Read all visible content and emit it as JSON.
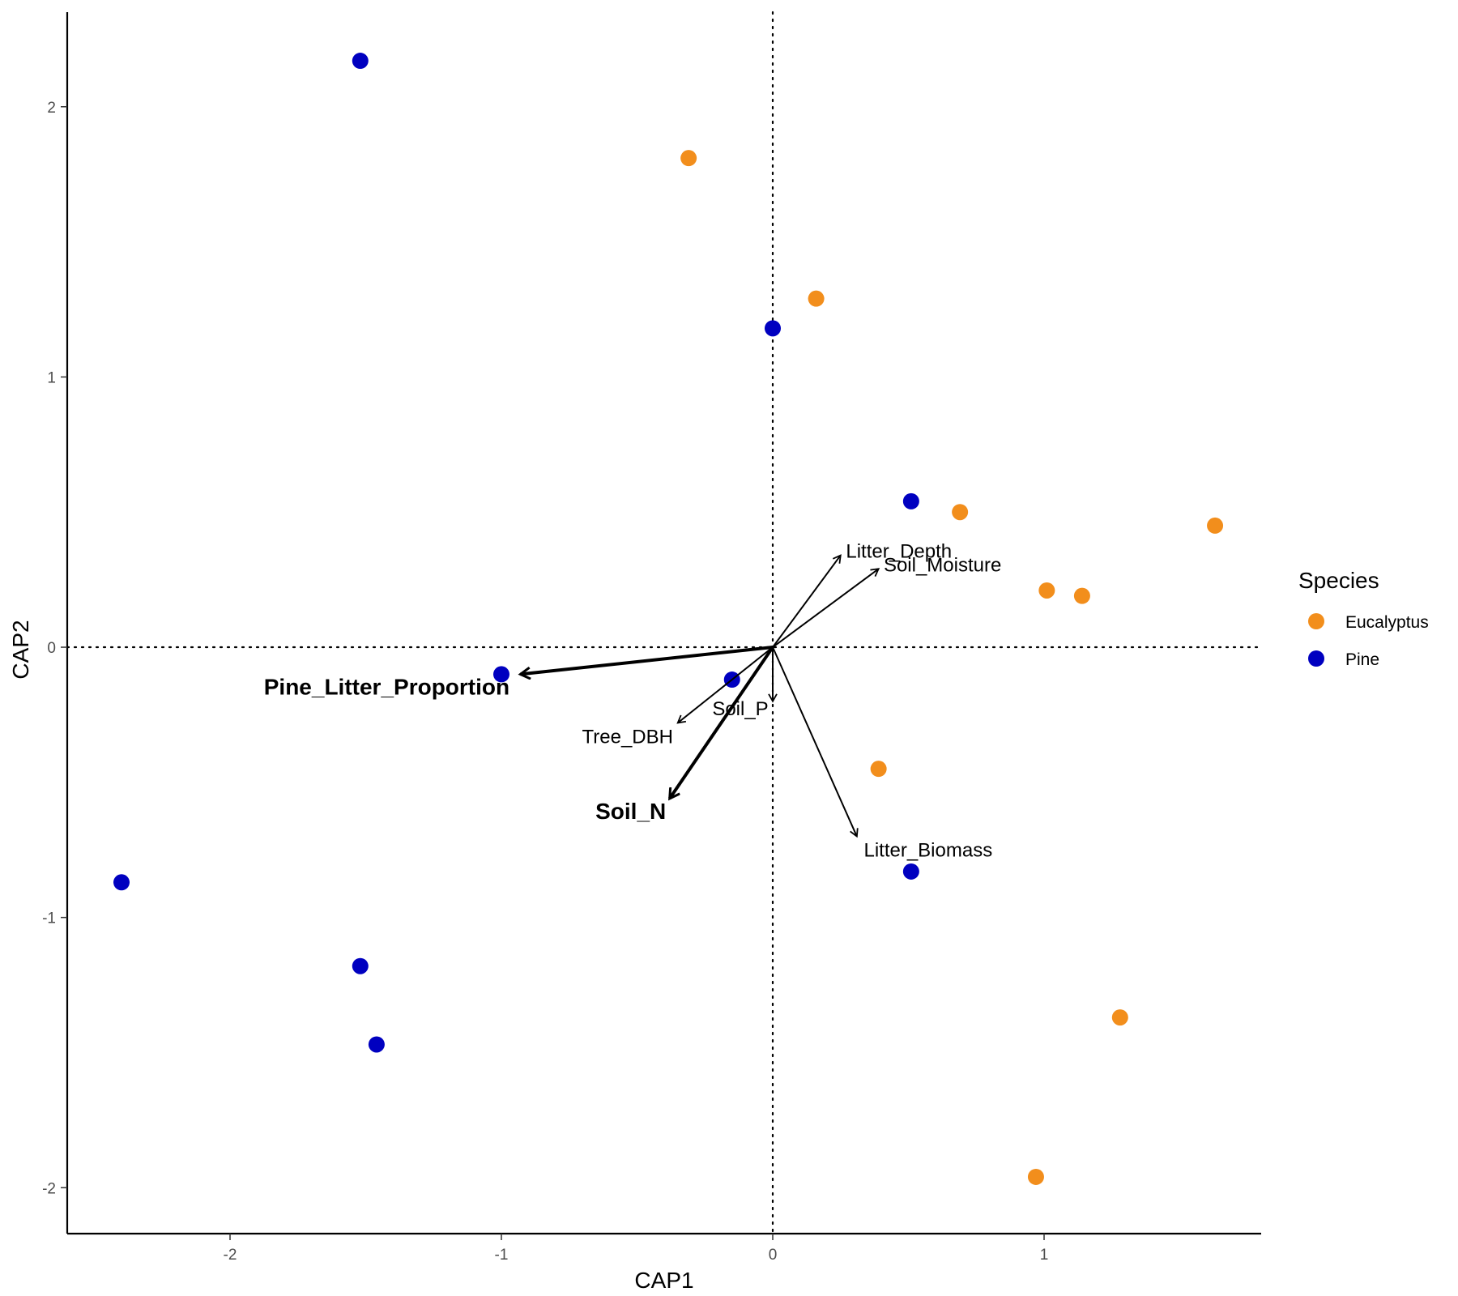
{
  "chart_data": {
    "type": "scatter",
    "xlabel": "CAP1",
    "ylabel": "CAP2",
    "xlim": [
      -2.6,
      1.8
    ],
    "ylim": [
      -2.17,
      2.35
    ],
    "x_ticks": [
      -2,
      -1,
      0,
      1
    ],
    "y_ticks": [
      -2,
      -1,
      0,
      1,
      2
    ],
    "reference_lines": {
      "x": 0,
      "y": 0,
      "style": "dotted"
    },
    "legend": {
      "title": "Species",
      "placement": "right",
      "items": [
        {
          "label": "Eucalyptus",
          "color": "#F28E1C"
        },
        {
          "label": "Pine",
          "color": "#0000C0"
        }
      ]
    },
    "series": [
      {
        "name": "Eucalyptus",
        "color": "#F28E1C",
        "points": [
          {
            "x": -0.31,
            "y": 1.81
          },
          {
            "x": 0.16,
            "y": 1.29
          },
          {
            "x": 0.69,
            "y": 0.5
          },
          {
            "x": 1.63,
            "y": 0.45
          },
          {
            "x": 1.01,
            "y": 0.21
          },
          {
            "x": 1.14,
            "y": 0.19
          },
          {
            "x": 0.39,
            "y": -0.45
          },
          {
            "x": 1.28,
            "y": -1.37
          },
          {
            "x": 0.97,
            "y": -1.96
          }
        ]
      },
      {
        "name": "Pine",
        "color": "#0000C0",
        "points": [
          {
            "x": -1.52,
            "y": 2.17
          },
          {
            "x": 0.0,
            "y": 1.18
          },
          {
            "x": 0.51,
            "y": 0.54
          },
          {
            "x": -1.0,
            "y": -0.1
          },
          {
            "x": -0.15,
            "y": -0.12
          },
          {
            "x": 0.51,
            "y": -0.83
          },
          {
            "x": -2.4,
            "y": -0.87
          },
          {
            "x": -1.52,
            "y": -1.18
          },
          {
            "x": -1.46,
            "y": -1.47
          }
        ]
      }
    ],
    "vectors": [
      {
        "label": "Pine_Litter_Proportion",
        "x": -0.93,
        "y": -0.1,
        "emphasis": true
      },
      {
        "label": "Soil_N",
        "x": -0.38,
        "y": -0.56,
        "emphasis": true
      },
      {
        "label": "Tree_DBH",
        "x": -0.35,
        "y": -0.28,
        "emphasis": false
      },
      {
        "label": "Soil_P",
        "x": 0.0,
        "y": -0.2,
        "emphasis": false
      },
      {
        "label": "Litter_Depth",
        "x": 0.25,
        "y": 0.34,
        "emphasis": false
      },
      {
        "label": "Soil_Moisture",
        "x": 0.39,
        "y": 0.29,
        "emphasis": false
      },
      {
        "label": "Litter_Biomass",
        "x": 0.31,
        "y": -0.7,
        "emphasis": false
      }
    ]
  }
}
